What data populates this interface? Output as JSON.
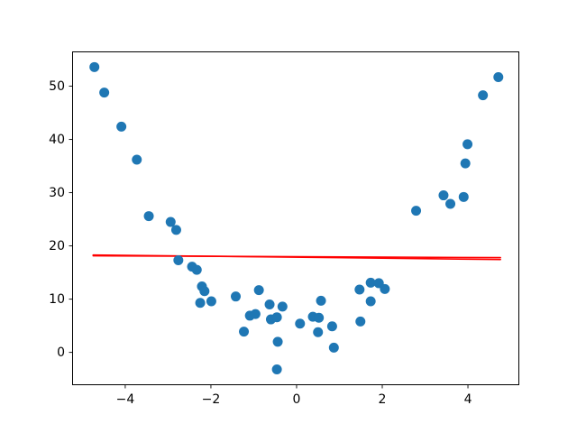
{
  "figure": {
    "background": "#ffffff"
  },
  "chart_data": {
    "type": "scatter",
    "title": "",
    "xlabel": "",
    "ylabel": "",
    "grid": false,
    "legend": null,
    "xlim": [
      -5.24,
      5.22
    ],
    "ylim": [
      -6.16,
      56.45
    ],
    "xticks": [
      -4,
      -2,
      0,
      2,
      4
    ],
    "xtick_labels": [
      "−4",
      "−2",
      "0",
      "2",
      "4"
    ],
    "yticks": [
      0,
      10,
      20,
      30,
      40,
      50
    ],
    "ytick_labels": [
      "0",
      "10",
      "20",
      "30",
      "40",
      "50"
    ],
    "series": [
      {
        "name": "scatter-points",
        "marker": "circle",
        "color": "#1f77b4",
        "points": [
          [
            -4.72,
            53.6
          ],
          [
            -4.49,
            48.8
          ],
          [
            -4.09,
            42.4
          ],
          [
            -3.73,
            36.2
          ],
          [
            -3.45,
            25.6
          ],
          [
            -2.94,
            24.5
          ],
          [
            -2.81,
            23.0
          ],
          [
            -2.76,
            17.3
          ],
          [
            -2.44,
            16.1
          ],
          [
            -2.33,
            15.5
          ],
          [
            -2.25,
            9.3
          ],
          [
            -2.21,
            12.4
          ],
          [
            -2.15,
            11.5
          ],
          [
            -1.99,
            9.6
          ],
          [
            -1.42,
            10.5
          ],
          [
            -1.23,
            3.9
          ],
          [
            -1.09,
            6.9
          ],
          [
            -0.96,
            7.2
          ],
          [
            -0.88,
            11.7
          ],
          [
            -0.63,
            9.0
          ],
          [
            -0.6,
            6.2
          ],
          [
            -0.46,
            6.6
          ],
          [
            -0.46,
            -3.2
          ],
          [
            -0.44,
            2.0
          ],
          [
            -0.33,
            8.6
          ],
          [
            0.08,
            5.4
          ],
          [
            0.38,
            6.7
          ],
          [
            0.5,
            3.8
          ],
          [
            0.52,
            6.5
          ],
          [
            0.57,
            9.7
          ],
          [
            0.83,
            4.9
          ],
          [
            0.87,
            0.9
          ],
          [
            1.47,
            11.8
          ],
          [
            1.49,
            5.8
          ],
          [
            1.73,
            13.1
          ],
          [
            1.73,
            9.6
          ],
          [
            1.92,
            13.0
          ],
          [
            2.06,
            11.9
          ],
          [
            2.79,
            26.6
          ],
          [
            3.43,
            29.5
          ],
          [
            3.59,
            27.9
          ],
          [
            3.9,
            29.2
          ],
          [
            3.94,
            35.5
          ],
          [
            3.99,
            39.1
          ],
          [
            4.35,
            48.3
          ],
          [
            4.71,
            51.7
          ]
        ]
      }
    ],
    "lines": [
      {
        "name": "fit-line",
        "color": "#ff0000",
        "segments": [
          [
            [
              -4.75,
              18.3
            ],
            [
              4.76,
              17.45
            ]
          ],
          [
            [
              -4.75,
              18.15
            ],
            [
              4.76,
              17.8
            ]
          ]
        ]
      }
    ]
  }
}
